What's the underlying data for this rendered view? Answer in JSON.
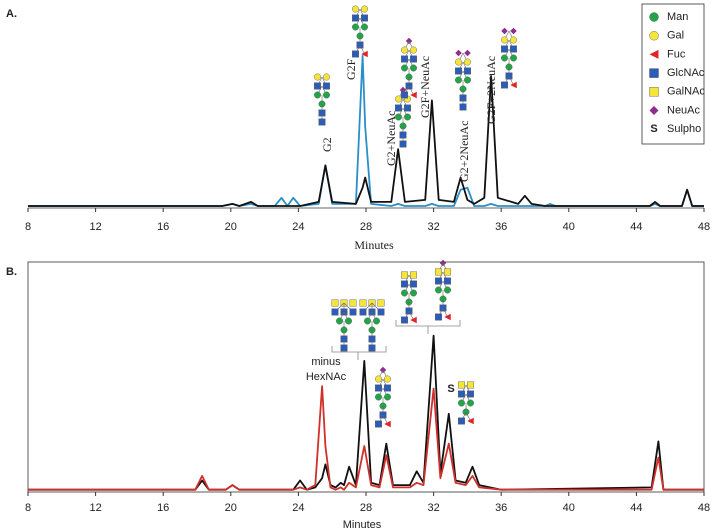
{
  "chart_data": [
    {
      "type": "line",
      "title": "A.",
      "x_label": "Minutes",
      "xlim": [
        8,
        48
      ],
      "xticks": [
        8,
        12,
        16,
        20,
        24,
        28,
        32,
        36,
        40,
        44,
        48
      ],
      "ylim": [
        0,
        100
      ],
      "frame": false,
      "x": [
        8,
        12,
        16,
        19.5,
        20.1,
        20.5,
        21.2,
        21.6,
        22.6,
        23.0,
        23.35,
        23.7,
        24.1,
        25.2,
        25.6,
        26.0,
        27.4,
        27.8,
        27.95,
        28.3,
        29.5,
        29.9,
        30.3,
        31.5,
        31.9,
        32.3,
        33.2,
        33.6,
        34.0,
        34.4,
        35.0,
        35.4,
        35.8,
        37.0,
        37.4,
        37.8,
        38.6,
        38.9,
        39.2,
        44.8,
        45.1,
        45.4,
        46.7,
        47.0,
        47.3,
        48
      ],
      "series": [
        {
          "color": "#2a8fc9",
          "values": [
            1,
            1,
            1,
            1,
            2,
            1,
            2,
            1,
            1,
            5,
            1,
            5,
            1,
            2,
            21,
            2,
            2,
            75,
            40,
            2,
            1,
            2,
            1,
            1,
            2,
            1,
            1,
            9,
            10,
            1,
            1,
            2,
            1,
            1,
            1,
            1,
            1,
            2,
            1,
            1,
            2,
            1,
            1,
            9,
            1,
            1
          ]
        },
        {
          "color": "#111111",
          "values": [
            1,
            1,
            1,
            1,
            2,
            1,
            3,
            1,
            1,
            1,
            1,
            1,
            1,
            3,
            21,
            3,
            2,
            10,
            15,
            3,
            3,
            29,
            3,
            4,
            53,
            4,
            3,
            15,
            4,
            2,
            5,
            65,
            5,
            2,
            6,
            2,
            1,
            1,
            1,
            1,
            3,
            1,
            1,
            9,
            1,
            1
          ]
        }
      ],
      "annotations": [
        "G2",
        "G2F",
        "G2+NeuAc",
        "G2F+NeuAc",
        "G2+2NeuAc",
        "G2F+2NeuAc"
      ],
      "legend": [
        {
          "name": "Man",
          "shape": "circle",
          "color": "#22a447"
        },
        {
          "name": "Gal",
          "shape": "circle",
          "color": "#f5e43a"
        },
        {
          "name": "Fuc",
          "shape": "triangle",
          "color": "#e0242c"
        },
        {
          "name": "GlcNAc",
          "shape": "square",
          "color": "#2b5cb8"
        },
        {
          "name": "GalNAc",
          "shape": "square",
          "color": "#f5e43a"
        },
        {
          "name": "NeuAc",
          "shape": "diamond",
          "color": "#8e2d8e"
        },
        {
          "name": "Sulpho",
          "symbol": "S"
        }
      ]
    },
    {
      "type": "line",
      "title": "B.",
      "x_label": "Minutes",
      "xlim": [
        8,
        48
      ],
      "xticks": [
        8,
        12,
        16,
        20,
        24,
        28,
        32,
        36,
        40,
        44,
        48
      ],
      "ylim": [
        0,
        100
      ],
      "frame": true,
      "x": [
        8,
        12,
        16,
        17.9,
        18.3,
        18.7,
        19.7,
        20.1,
        20.5,
        23.7,
        24.1,
        24.5,
        25.0,
        25.4,
        25.6,
        25.9,
        26.2,
        26.5,
        26.7,
        27.0,
        27.4,
        27.9,
        28.3,
        28.8,
        29.2,
        29.6,
        30.6,
        31.0,
        31.4,
        32.0,
        32.4,
        32.9,
        33.3,
        33.9,
        34.3,
        34.7,
        36,
        44.9,
        45.3,
        45.6,
        48
      ],
      "series": [
        {
          "color": "#111111",
          "values": [
            1,
            1,
            1,
            1,
            5,
            1,
            1,
            3,
            1,
            1,
            5,
            1,
            2,
            6,
            12,
            3,
            2,
            4,
            3,
            11,
            3,
            57,
            4,
            3,
            21,
            3,
            3,
            9,
            4,
            68,
            8,
            34,
            5,
            4,
            11,
            3,
            1,
            2,
            22,
            1,
            1
          ]
        },
        {
          "color": "#d0302a",
          "values": [
            1,
            1,
            1,
            1,
            7,
            1,
            1,
            3,
            1,
            1,
            2,
            1,
            3,
            46,
            20,
            2,
            1,
            2,
            1,
            4,
            2,
            20,
            3,
            2,
            16,
            2,
            2,
            4,
            3,
            45,
            6,
            21,
            4,
            3,
            7,
            2,
            1,
            1,
            15,
            1,
            1
          ]
        }
      ],
      "annotations": [
        "minus",
        "HexNAc",
        "S"
      ]
    }
  ]
}
